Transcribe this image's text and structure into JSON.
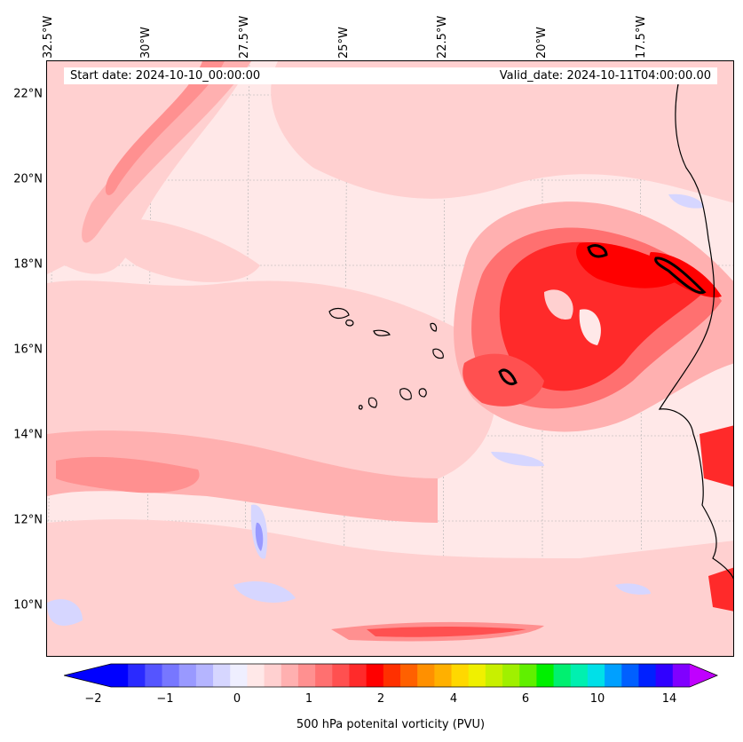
{
  "map": {
    "start_date_label": "Start date: 2024-10-10_00:00:00",
    "valid_date_label": "Valid_date: 2024-10-11T04:00:00.00",
    "longitude_labels": [
      "32.5°W",
      "30°W",
      "27.5°W",
      "25°W",
      "22.5°W",
      "20°W",
      "17.5°W"
    ],
    "latitude_labels": [
      "22°N",
      "20°N",
      "18°N",
      "16°N",
      "14°N",
      "12°N",
      "10°N"
    ],
    "field": "500 hPa potential vorticity",
    "background_color": "#ffe8e8",
    "coast_color": "#000000"
  },
  "colorbar": {
    "title": "500 hPa potenital vorticity (PVU)",
    "tick_labels": [
      "−2",
      "−1",
      "0",
      "1",
      "2",
      "4",
      "6",
      "10",
      "14"
    ],
    "colors": [
      "#0000ff",
      "#2a2aff",
      "#5555ff",
      "#7777ff",
      "#9999ff",
      "#b5b5ff",
      "#d6d6ff",
      "#efefff",
      "#ffe8e8",
      "#ffd0d0",
      "#ffb0b0",
      "#ff9090",
      "#ff7070",
      "#ff5050",
      "#ff2a2a",
      "#ff0000",
      "#ff3000",
      "#ff6000",
      "#ff9000",
      "#ffb000",
      "#ffd800",
      "#f0f000",
      "#c8f000",
      "#a0f000",
      "#60f000",
      "#00f000",
      "#00f070",
      "#00f0b0",
      "#00e0e8",
      "#00a0ff",
      "#0060ff",
      "#0020ff",
      "#3000ff",
      "#8000ff"
    ],
    "under_color": "#0000ff",
    "over_color": "#c000ff"
  }
}
